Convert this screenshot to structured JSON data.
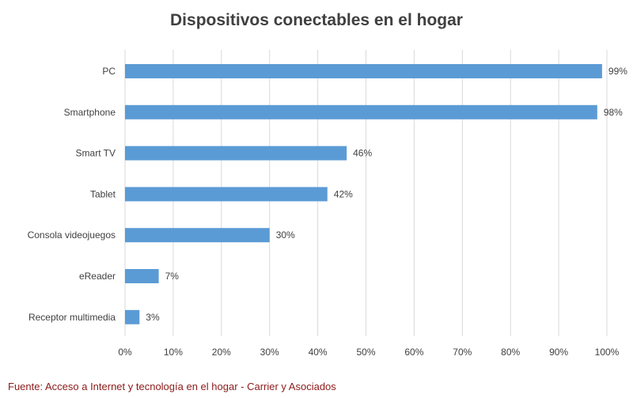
{
  "chart_data": {
    "type": "bar",
    "orientation": "horizontal",
    "title": "Dispositivos conectables en el hogar",
    "categories": [
      "PC",
      "Smartphone",
      "Smart TV",
      "Tablet",
      "Consola videojuegos",
      "eReader",
      "Receptor multimedia"
    ],
    "values": [
      99,
      98,
      46,
      42,
      30,
      7,
      3
    ],
    "data_labels": [
      "99%",
      "98%",
      "46%",
      "42%",
      "30%",
      "7%",
      "3%"
    ],
    "x_ticks": [
      "0%",
      "10%",
      "20%",
      "30%",
      "40%",
      "50%",
      "60%",
      "70%",
      "80%",
      "90%",
      "100%"
    ],
    "xlim": [
      0,
      100
    ],
    "grid": true,
    "legend": "none",
    "bar_color": "#5b9bd5",
    "source": "Fuente: Acceso a Internet y tecnología en el hogar - Carrier y Asociados"
  }
}
